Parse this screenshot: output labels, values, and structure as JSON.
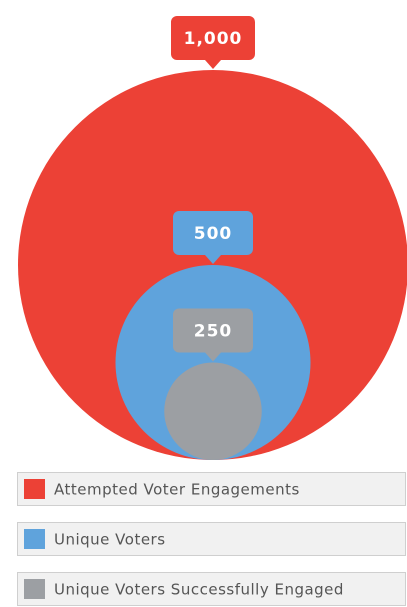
{
  "chart_data": {
    "type": "bubble",
    "categories": [
      "Attempted Voter Engagements",
      "Unique Voters",
      "Unique Voters Successfully Engaged"
    ],
    "values": [
      1000,
      500,
      250
    ],
    "value_labels": [
      "1,000",
      "500",
      "250"
    ],
    "colors": [
      "#ec4136",
      "#5fa3dc",
      "#9c9fa3"
    ]
  }
}
